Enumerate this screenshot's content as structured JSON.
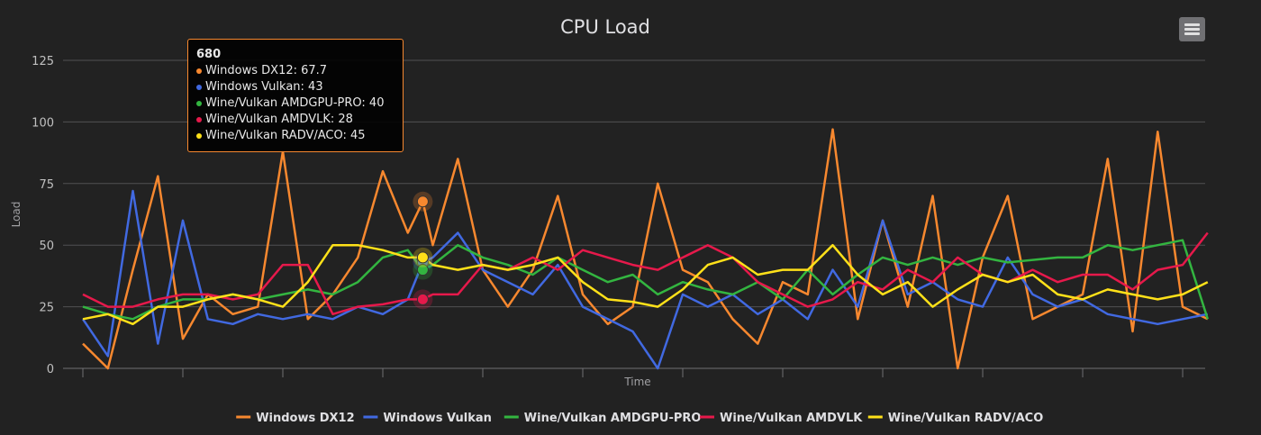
{
  "chart_data": {
    "type": "line",
    "title": "CPU Load",
    "xlabel": "Time",
    "ylabel": "Load",
    "xlim": [
      0,
      2245
    ],
    "ylim": [
      0,
      130
    ],
    "y_ticks": [
      0,
      25,
      50,
      75,
      100,
      125
    ],
    "x_tick_interval": 200,
    "x_tick_labels_shown": false,
    "grid": "horizontal",
    "legend_position": "bottom",
    "background": "#222222",
    "x": [
      0,
      50,
      100,
      150,
      200,
      250,
      300,
      350,
      400,
      450,
      500,
      550,
      600,
      650,
      680,
      700,
      750,
      800,
      850,
      900,
      950,
      1000,
      1050,
      1100,
      1150,
      1200,
      1250,
      1300,
      1350,
      1400,
      1450,
      1500,
      1550,
      1600,
      1650,
      1700,
      1750,
      1800,
      1850,
      1900,
      1950,
      2000,
      2050,
      2100,
      2150,
      2200,
      2250
    ],
    "series": [
      {
        "name": "Windows DX12",
        "color": "#f7882f",
        "values": [
          10,
          0,
          40,
          78,
          12,
          30,
          22,
          25,
          88,
          20,
          30,
          45,
          80,
          55,
          67.7,
          50,
          85,
          40,
          25,
          40,
          70,
          30,
          18,
          25,
          75,
          40,
          35,
          20,
          10,
          35,
          30,
          97,
          20,
          60,
          25,
          70,
          0,
          45,
          70,
          20,
          25,
          30,
          85,
          15,
          96,
          25,
          20
        ]
      },
      {
        "name": "Windows Vulkan",
        "color": "#4169e1",
        "values": [
          20,
          5,
          72,
          10,
          60,
          20,
          18,
          22,
          20,
          22,
          20,
          25,
          22,
          28,
          43,
          45,
          55,
          40,
          35,
          30,
          42,
          25,
          20,
          15,
          0,
          30,
          25,
          30,
          22,
          28,
          20,
          40,
          25,
          60,
          30,
          35,
          28,
          25,
          45,
          30,
          25,
          28,
          22,
          20,
          18,
          20,
          22
        ]
      },
      {
        "name": "Wine/Vulkan AMDGPU-PRO",
        "color": "#33b540",
        "values": [
          25,
          22,
          20,
          25,
          28,
          28,
          30,
          28,
          30,
          32,
          30,
          35,
          45,
          48,
          40,
          42,
          50,
          45,
          42,
          38,
          45,
          40,
          35,
          38,
          30,
          35,
          32,
          30,
          35,
          28,
          40,
          30,
          38,
          45,
          42,
          45,
          42,
          45,
          43,
          44,
          45,
          45,
          50,
          48,
          50,
          52,
          20
        ]
      },
      {
        "name": "Wine/Vulkan AMDVLK",
        "color": "#e6194b",
        "values": [
          30,
          25,
          25,
          28,
          30,
          30,
          28,
          30,
          42,
          42,
          22,
          25,
          26,
          28,
          28,
          30,
          30,
          42,
          40,
          45,
          40,
          48,
          45,
          42,
          40,
          45,
          50,
          45,
          35,
          30,
          25,
          28,
          35,
          32,
          40,
          35,
          45,
          38,
          35,
          40,
          35,
          38,
          38,
          32,
          40,
          42,
          55
        ]
      },
      {
        "name": "Wine/Vulkan RADV/ACO",
        "color": "#ffe119",
        "values": [
          20,
          22,
          18,
          25,
          25,
          28,
          30,
          28,
          25,
          35,
          50,
          50,
          48,
          45,
          45,
          42,
          40,
          42,
          40,
          42,
          45,
          35,
          28,
          27,
          25,
          32,
          42,
          45,
          38,
          40,
          40,
          50,
          38,
          30,
          35,
          25,
          32,
          38,
          35,
          38,
          30,
          28,
          32,
          30,
          28,
          30,
          35
        ]
      }
    ],
    "tooltip": {
      "x": 680,
      "header": "680",
      "rows": [
        {
          "label": "Windows DX12: 67.7",
          "color": "#f7882f"
        },
        {
          "label": "Windows Vulkan: 43",
          "color": "#4169e1"
        },
        {
          "label": "Wine/Vulkan AMDGPU-PRO: 40",
          "color": "#33b540"
        },
        {
          "label": "Wine/Vulkan AMDVLK: 28",
          "color": "#e6194b"
        },
        {
          "label": "Wine/Vulkan RADV/ACO: 45",
          "color": "#ffe119"
        }
      ]
    }
  },
  "menu": {
    "icon": "hamburger-menu-icon"
  }
}
